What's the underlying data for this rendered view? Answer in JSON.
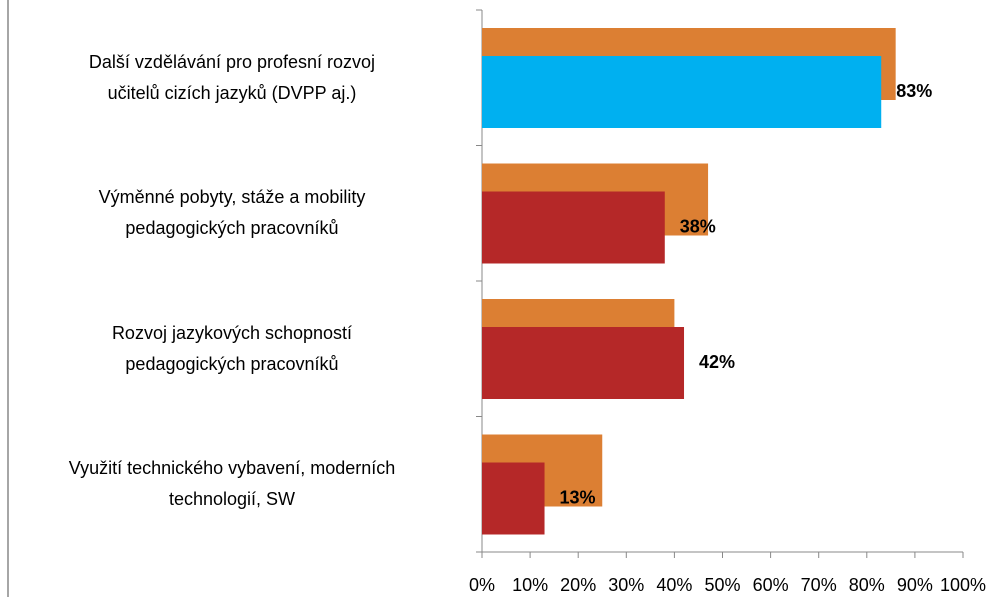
{
  "chart_data": {
    "type": "bar",
    "orientation": "horizontal",
    "categories": [
      "Další vzdělávání pro profesní rozvoj\nučitelů cizích jazyků (DVPP aj.)",
      "Výměnné pobyty, stáže a mobility\npedagogických pracovníků",
      "Rozvoj jazykových schopností\npedagogických pracovníků",
      "Využití technického vybavení, moderních\ntechnologií, SW"
    ],
    "series": [
      {
        "color": "#dc7f33",
        "values": [
          86,
          47,
          40,
          25
        ]
      },
      {
        "colors": [
          "#00b0f0",
          "#b52828",
          "#b52828",
          "#b52828"
        ],
        "values": [
          83,
          38,
          42,
          13
        ],
        "value_labels": [
          "83%",
          "38%",
          "42%",
          "13%"
        ]
      }
    ],
    "xlim": [
      0,
      100
    ],
    "xticks": [
      {
        "value": 0,
        "label": "0%"
      },
      {
        "value": 10,
        "label": "10%"
      },
      {
        "value": 20,
        "label": "20%"
      },
      {
        "value": 30,
        "label": "30%"
      },
      {
        "value": 40,
        "label": "40%"
      },
      {
        "value": 50,
        "label": "50%"
      },
      {
        "value": 60,
        "label": "60%"
      },
      {
        "value": 70,
        "label": "70%"
      },
      {
        "value": 80,
        "label": "80%"
      },
      {
        "value": 90,
        "label": "90%"
      },
      {
        "value": 100,
        "label": "100%"
      }
    ],
    "grid": false
  }
}
